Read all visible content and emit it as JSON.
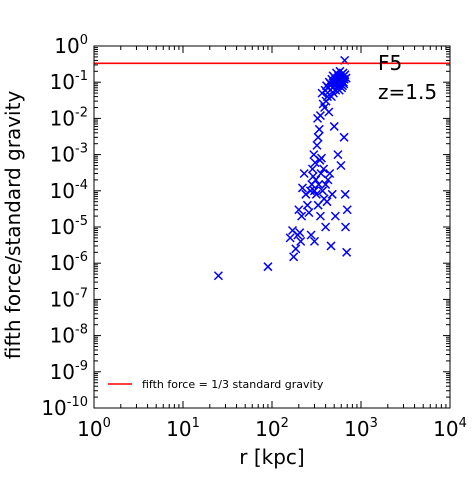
{
  "chart_data": {
    "type": "scatter",
    "title": "",
    "xlabel": "r [kpc]",
    "ylabel": "fifth force/standard gravity",
    "xscale": "log",
    "yscale": "log",
    "xlim": [
      1,
      10000
    ],
    "ylim": [
      1e-10,
      1
    ],
    "grid": false,
    "legend_placement": "lower-left",
    "x_ticks": [
      {
        "base": "10",
        "exp": "0",
        "value": 1
      },
      {
        "base": "10",
        "exp": "1",
        "value": 10
      },
      {
        "base": "10",
        "exp": "2",
        "value": 100
      },
      {
        "base": "10",
        "exp": "3",
        "value": 1000
      },
      {
        "base": "10",
        "exp": "4",
        "value": 10000
      }
    ],
    "y_ticks": [
      {
        "base": "10",
        "exp": "0",
        "value": 1
      },
      {
        "base": "10",
        "exp": "-1",
        "value": 0.1
      },
      {
        "base": "10",
        "exp": "-2",
        "value": 0.01
      },
      {
        "base": "10",
        "exp": "-3",
        "value": 0.001
      },
      {
        "base": "10",
        "exp": "-4",
        "value": 0.0001
      },
      {
        "base": "10",
        "exp": "-5",
        "value": 1e-05
      },
      {
        "base": "10",
        "exp": "-6",
        "value": 1e-06
      },
      {
        "base": "10",
        "exp": "-7",
        "value": 1e-07
      },
      {
        "base": "10",
        "exp": "-8",
        "value": 1e-08
      },
      {
        "base": "10",
        "exp": "-9",
        "value": 1e-09
      },
      {
        "base": "10",
        "exp": "-10",
        "value": 1e-10
      }
    ],
    "annotations": [
      "F5",
      "z=1.5"
    ],
    "reference_line": {
      "label": "fifth force = 1/3 standard gravity",
      "y": 0.3333,
      "color": "#ff0000"
    },
    "series": [
      {
        "marker": "x",
        "color": "#0000ff",
        "points": [
          [
            25,
            4.5e-07
          ],
          [
            90,
            8e-07
          ],
          [
            160,
            5e-06
          ],
          [
            170,
            8e-06
          ],
          [
            175,
            1.5e-06
          ],
          [
            185,
            2.5e-06
          ],
          [
            195,
            6e-06
          ],
          [
            200,
            3e-05
          ],
          [
            205,
            7e-06
          ],
          [
            210,
            4e-06
          ],
          [
            215,
            2e-05
          ],
          [
            220,
            0.00012
          ],
          [
            230,
            0.0003
          ],
          [
            240,
            8e-05
          ],
          [
            250,
            4e-05
          ],
          [
            260,
            2.5e-05
          ],
          [
            270,
            0.0001
          ],
          [
            275,
            6e-06
          ],
          [
            280,
            0.00015
          ],
          [
            285,
            0.0004
          ],
          [
            290,
            0.00025
          ],
          [
            295,
            0.001
          ],
          [
            300,
            4e-06
          ],
          [
            300,
            0.0001
          ],
          [
            305,
            0.0006
          ],
          [
            310,
            0.0002
          ],
          [
            315,
            8e-05
          ],
          [
            320,
            0.0018
          ],
          [
            325,
            0.01
          ],
          [
            330,
            0.003
          ],
          [
            330,
            4e-05
          ],
          [
            335,
            0.00015
          ],
          [
            340,
            0.005
          ],
          [
            345,
            0.0007
          ],
          [
            350,
            0.012
          ],
          [
            350,
            2e-05
          ],
          [
            355,
            0.0003
          ],
          [
            360,
            0.0008
          ],
          [
            365,
            0.05
          ],
          [
            370,
            0.0001
          ],
          [
            375,
            0.025
          ],
          [
            380,
            0.0004
          ],
          [
            385,
            6e-05
          ],
          [
            390,
            0.02
          ],
          [
            395,
            0.06
          ],
          [
            400,
            0.00015
          ],
          [
            400,
            1e-05
          ],
          [
            405,
            0.03
          ],
          [
            410,
            0.08
          ],
          [
            415,
            5e-05
          ],
          [
            420,
            0.04
          ],
          [
            425,
            0.0002
          ],
          [
            430,
            0.07
          ],
          [
            435,
            0.015
          ],
          [
            440,
            0.1
          ],
          [
            445,
            0.0003
          ],
          [
            450,
            0.06
          ],
          [
            455,
            0.09
          ],
          [
            460,
            3e-06
          ],
          [
            465,
            0.04
          ],
          [
            470,
            0.12
          ],
          [
            475,
            8e-05
          ],
          [
            480,
            0.07
          ],
          [
            485,
            0.15
          ],
          [
            490,
            0.05
          ],
          [
            495,
            0.1
          ],
          [
            500,
            0.006
          ],
          [
            505,
            0.08
          ],
          [
            510,
            0.13
          ],
          [
            515,
            2e-05
          ],
          [
            520,
            0.06
          ],
          [
            525,
            0.1
          ],
          [
            530,
            0.18
          ],
          [
            535,
            0.09
          ],
          [
            540,
            0.07
          ],
          [
            545,
            0.12
          ],
          [
            550,
            0.001
          ],
          [
            555,
            0.08
          ],
          [
            560,
            0.15
          ],
          [
            565,
            0.1
          ],
          [
            570,
            0.06
          ],
          [
            575,
            0.13
          ],
          [
            580,
            0.2
          ],
          [
            585,
            0.09
          ],
          [
            590,
            0.11
          ],
          [
            595,
            0.0005
          ],
          [
            600,
            0.16
          ],
          [
            605,
            0.07
          ],
          [
            610,
            0.12
          ],
          [
            615,
            0.1
          ],
          [
            620,
            0.08
          ],
          [
            625,
            0.14
          ],
          [
            630,
            0.18
          ],
          [
            635,
            0.1
          ],
          [
            640,
            0.09
          ],
          [
            645,
            0.003
          ],
          [
            650,
            0.12
          ],
          [
            655,
            0.4
          ],
          [
            660,
            0.16
          ],
          [
            665,
            8e-05
          ],
          [
            670,
            1e-05
          ],
          [
            680,
            0.13
          ],
          [
            690,
            2e-06
          ],
          [
            700,
            3e-05
          ]
        ]
      }
    ]
  }
}
